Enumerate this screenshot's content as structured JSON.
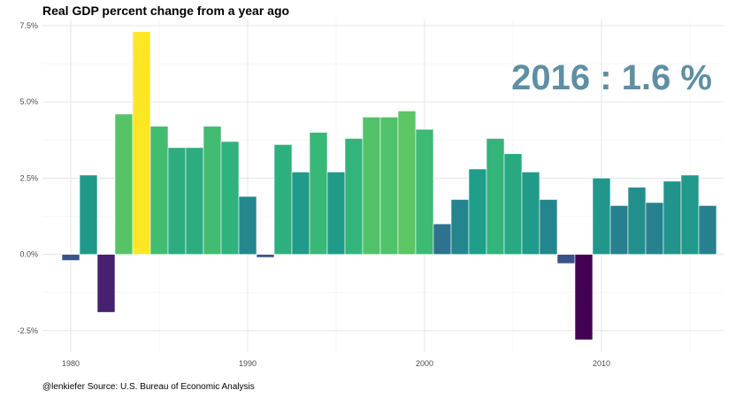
{
  "title": "Real GDP percent change from a year ago",
  "caption": "@lenkiefer Source: U.S. Bureau of Economic Analysis",
  "annotation": "2016 : 1.6 %",
  "chart_data": {
    "type": "bar",
    "title": "Real GDP percent change from a year ago",
    "xlabel": "",
    "ylabel": "",
    "ylim": [
      -3.2,
      7.7
    ],
    "xlim": [
      1978.4,
      2016.9
    ],
    "grid": true,
    "color_scale": "viridis",
    "y_ticks": [
      {
        "value": -2.5,
        "label": "-2.5%"
      },
      {
        "value": 0,
        "label": "0.0%"
      },
      {
        "value": 2.5,
        "label": "2.5%"
      },
      {
        "value": 5,
        "label": "5.0%"
      },
      {
        "value": 7.5,
        "label": "7.5%"
      }
    ],
    "x_ticks": [
      {
        "value": 1980,
        "label": "1980"
      },
      {
        "value": 1990,
        "label": "1990"
      },
      {
        "value": 2000,
        "label": "2000"
      },
      {
        "value": 2010,
        "label": "2010"
      }
    ],
    "x": [
      1980,
      1981,
      1982,
      1983,
      1984,
      1985,
      1986,
      1987,
      1988,
      1989,
      1990,
      1991,
      1992,
      1993,
      1994,
      1995,
      1996,
      1997,
      1998,
      1999,
      2000,
      2001,
      2002,
      2003,
      2004,
      2005,
      2006,
      2007,
      2008,
      2009,
      2010,
      2011,
      2012,
      2013,
      2014,
      2015,
      2016
    ],
    "values": [
      -0.2,
      2.6,
      -1.9,
      4.6,
      7.3,
      4.2,
      3.5,
      3.5,
      4.2,
      3.7,
      1.9,
      -0.1,
      3.6,
      2.7,
      4.0,
      2.7,
      3.8,
      4.5,
      4.5,
      4.7,
      4.1,
      1.0,
      1.8,
      2.8,
      3.8,
      3.3,
      2.7,
      1.8,
      -0.3,
      -2.8,
      2.5,
      1.6,
      2.2,
      1.7,
      2.4,
      2.6,
      1.6
    ]
  }
}
